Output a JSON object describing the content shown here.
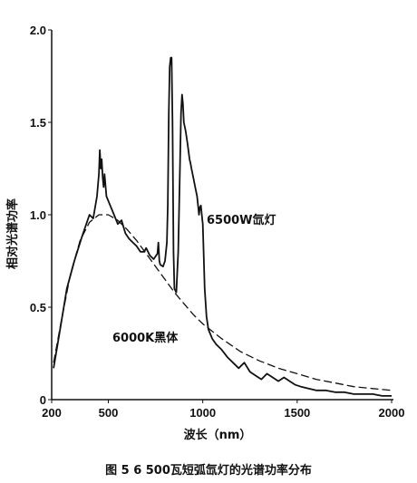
{
  "caption": "图 5 6 500瓦短弧氙灯的光谱功率分布",
  "chart_data": {
    "type": "line",
    "xlabel": "波长（nm）",
    "ylabel": "相对光谱功率",
    "xlim": [
      200,
      2000
    ],
    "ylim": [
      0,
      2.0
    ],
    "x_ticks": [
      "200",
      "500",
      "1000",
      "1500",
      "2000"
    ],
    "x_tick_values": [
      200,
      500,
      1000,
      1500,
      2000
    ],
    "y_ticks": [
      "0",
      "0.5",
      "1.0",
      "1.5",
      "2.0"
    ],
    "y_tick_values": [
      0,
      0.5,
      1.0,
      1.5,
      2.0
    ],
    "grid": false,
    "series": [
      {
        "name": "6500W氙灯",
        "style": "solid",
        "x": [
          210,
          240,
          280,
          320,
          360,
          400,
          420,
          440,
          450,
          455,
          460,
          465,
          470,
          475,
          480,
          490,
          510,
          530,
          550,
          570,
          590,
          610,
          630,
          650,
          670,
          690,
          700,
          720,
          740,
          760,
          765,
          770,
          775,
          790,
          800,
          810,
          815,
          820,
          825,
          830,
          835,
          840,
          845,
          850,
          860,
          870,
          880,
          885,
          890,
          895,
          900,
          910,
          920,
          930,
          935,
          940,
          950,
          960,
          970,
          975,
          980,
          985,
          990,
          995,
          1000,
          1010,
          1020,
          1030,
          1050,
          1070,
          1100,
          1130,
          1160,
          1190,
          1220,
          1250,
          1280,
          1310,
          1340,
          1370,
          1400,
          1430,
          1460,
          1490,
          1520,
          1560,
          1600,
          1650,
          1700,
          1750,
          1800,
          1850,
          1900,
          1950,
          2000
        ],
        "y": [
          0.17,
          0.35,
          0.6,
          0.75,
          0.88,
          1.0,
          0.98,
          1.1,
          1.22,
          1.35,
          1.25,
          1.3,
          1.2,
          1.15,
          1.22,
          1.1,
          1.05,
          1.0,
          0.95,
          0.97,
          0.9,
          0.87,
          0.85,
          0.83,
          0.8,
          0.8,
          0.82,
          0.78,
          0.76,
          0.79,
          0.85,
          0.75,
          0.73,
          0.72,
          0.75,
          0.85,
          1.05,
          1.55,
          1.8,
          1.85,
          1.85,
          1.5,
          0.8,
          0.6,
          0.58,
          0.8,
          1.3,
          1.55,
          1.65,
          1.6,
          1.5,
          1.45,
          1.38,
          1.3,
          1.28,
          1.25,
          1.2,
          1.15,
          1.1,
          1.05,
          1.0,
          1.04,
          1.05,
          1.0,
          0.95,
          0.6,
          0.45,
          0.38,
          0.33,
          0.3,
          0.27,
          0.23,
          0.2,
          0.17,
          0.2,
          0.15,
          0.13,
          0.11,
          0.14,
          0.12,
          0.1,
          0.12,
          0.1,
          0.08,
          0.07,
          0.06,
          0.05,
          0.05,
          0.04,
          0.04,
          0.03,
          0.03,
          0.03,
          0.02,
          0.02
        ]
      },
      {
        "name": "6000K黑体",
        "style": "dashed",
        "x": [
          210,
          250,
          300,
          350,
          400,
          450,
          500,
          550,
          600,
          650,
          700,
          750,
          800,
          850,
          900,
          950,
          1000,
          1100,
          1200,
          1300,
          1400,
          1500,
          1600,
          1700,
          1800,
          1900,
          2000
        ],
        "y": [
          0.2,
          0.42,
          0.68,
          0.86,
          0.96,
          1.0,
          1.0,
          0.97,
          0.92,
          0.86,
          0.79,
          0.72,
          0.65,
          0.58,
          0.52,
          0.46,
          0.41,
          0.33,
          0.26,
          0.21,
          0.17,
          0.14,
          0.11,
          0.09,
          0.07,
          0.06,
          0.05
        ]
      }
    ],
    "annotations": [
      "6500W氙灯",
      "6000K黑体"
    ]
  }
}
